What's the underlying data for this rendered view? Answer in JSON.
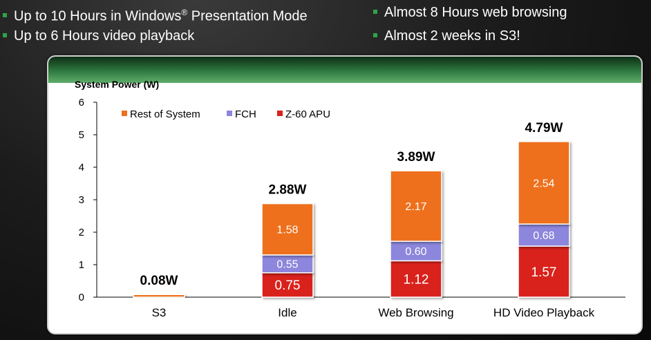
{
  "bullets": {
    "left_1_pre": "Up to 10 Hours in Windows",
    "left_1_sup": "®",
    "left_1_post": " Presentation Mode",
    "left_2": "Up to 6 Hours video playback",
    "right_1": "Almost 8 Hours web browsing",
    "right_2": "Almost 2 weeks in S3!"
  },
  "colors": {
    "bullet": "#2fa34a",
    "rest_of_system": "#ee6f1e",
    "fch": "#8c86dc",
    "apu": "#d9221f"
  },
  "chart_data": {
    "type": "bar",
    "stacked": true,
    "title": "",
    "ylabel": "System Power (W)",
    "xlabel": "",
    "ylim": [
      0,
      6
    ],
    "yticks": [
      "0",
      "1",
      "2",
      "3",
      "4",
      "5",
      "6"
    ],
    "categories": [
      "S3",
      "Idle",
      "Web Browsing",
      "HD Video Playback"
    ],
    "series": [
      {
        "name": "Z-60 APU",
        "color_key": "apu",
        "values": [
          null,
          0.75,
          1.12,
          1.57
        ],
        "labels": [
          "",
          "0.75",
          "1.12",
          "1.57"
        ]
      },
      {
        "name": "FCH",
        "color_key": "fch",
        "values": [
          null,
          0.55,
          0.6,
          0.68
        ],
        "labels": [
          "",
          "0.55",
          "0.60",
          "0.68"
        ]
      },
      {
        "name": "Rest of System",
        "color_key": "rest_of_system",
        "values": [
          0.08,
          1.58,
          2.17,
          2.54
        ],
        "labels": [
          "",
          "1.58",
          "2.17",
          "2.54"
        ]
      }
    ],
    "totals": [
      "0.08W",
      "2.88W",
      "3.89W",
      "4.79W"
    ],
    "legend": [
      "Rest of System",
      "FCH",
      "Z-60 APU"
    ],
    "legend_position": "top-left",
    "grid": false
  }
}
